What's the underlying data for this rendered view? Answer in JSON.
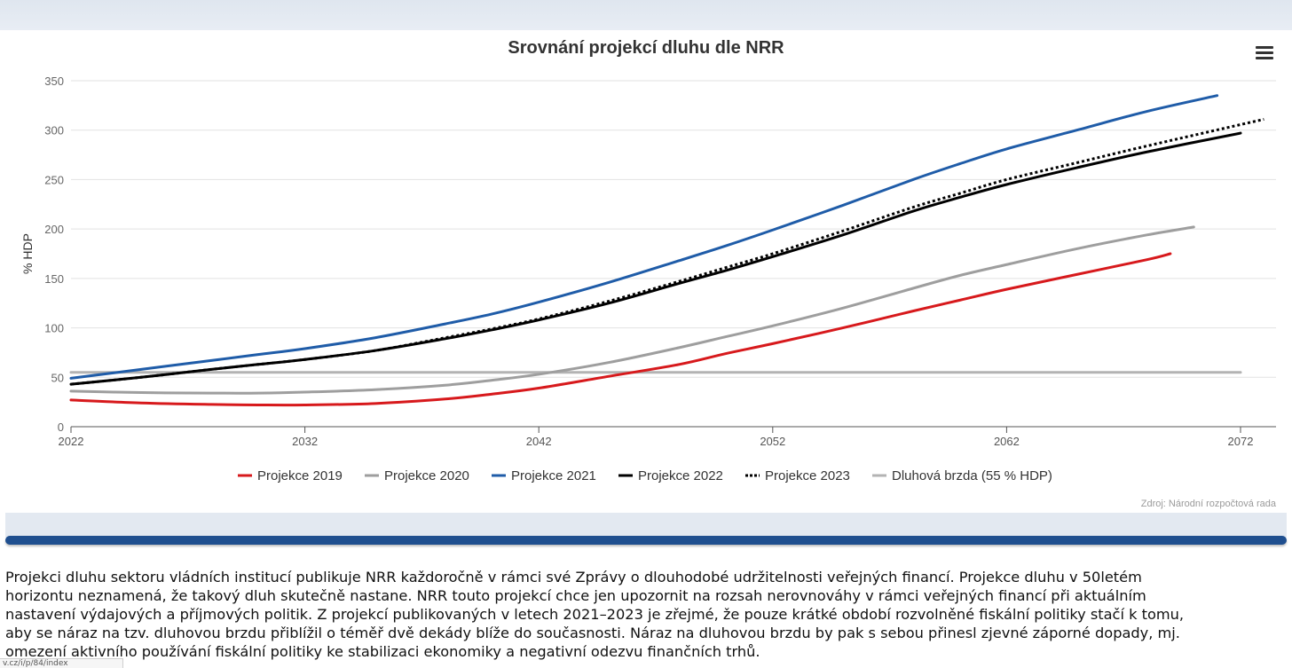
{
  "chart_data": {
    "type": "line",
    "title": "Srovnání projekcí dluhu dle NRR",
    "xlabel": "",
    "ylabel": "% HDP",
    "xlim": [
      2022,
      2073
    ],
    "ylim": [
      0,
      350
    ],
    "x_ticks": [
      2022,
      2032,
      2042,
      2052,
      2062,
      2072
    ],
    "y_ticks": [
      0,
      50,
      100,
      150,
      200,
      250,
      300,
      350
    ],
    "grid": "horizontal",
    "legend_position": "bottom-center",
    "source": "Zdroj: Národní rozpočtová rada",
    "series": [
      {
        "name": "Projekce 2019",
        "color": "#d7191c",
        "dash": "solid",
        "points": [
          [
            2022,
            27
          ],
          [
            2025,
            24
          ],
          [
            2028,
            22.5
          ],
          [
            2030,
            22
          ],
          [
            2032,
            22
          ],
          [
            2035,
            23.5
          ],
          [
            2038,
            28
          ],
          [
            2040,
            33
          ],
          [
            2042,
            39
          ],
          [
            2045,
            51
          ],
          [
            2048,
            63
          ],
          [
            2050,
            74
          ],
          [
            2052,
            84
          ],
          [
            2055,
            100
          ],
          [
            2058,
            117
          ],
          [
            2060,
            128
          ],
          [
            2062,
            139
          ],
          [
            2065,
            154
          ],
          [
            2068,
            169
          ],
          [
            2069,
            175
          ]
        ]
      },
      {
        "name": "Projekce 2020",
        "color": "#9e9e9e",
        "dash": "solid",
        "points": [
          [
            2022,
            36
          ],
          [
            2025,
            34.5
          ],
          [
            2028,
            34
          ],
          [
            2030,
            34
          ],
          [
            2032,
            35
          ],
          [
            2035,
            37.5
          ],
          [
            2038,
            42
          ],
          [
            2040,
            47
          ],
          [
            2042,
            53
          ],
          [
            2045,
            65
          ],
          [
            2048,
            80
          ],
          [
            2050,
            91
          ],
          [
            2052,
            102
          ],
          [
            2055,
            120
          ],
          [
            2058,
            140
          ],
          [
            2060,
            153
          ],
          [
            2062,
            164
          ],
          [
            2065,
            180
          ],
          [
            2068,
            194
          ],
          [
            2070,
            202
          ]
        ]
      },
      {
        "name": "Projekce 2021",
        "color": "#1f5ca8",
        "dash": "solid",
        "points": [
          [
            2022,
            49
          ],
          [
            2025,
            58
          ],
          [
            2028,
            67
          ],
          [
            2030,
            73
          ],
          [
            2032,
            79
          ],
          [
            2035,
            90
          ],
          [
            2038,
            104
          ],
          [
            2040,
            114
          ],
          [
            2042,
            126
          ],
          [
            2045,
            146
          ],
          [
            2048,
            168
          ],
          [
            2050,
            183
          ],
          [
            2052,
            199
          ],
          [
            2055,
            224
          ],
          [
            2058,
            250
          ],
          [
            2060,
            266
          ],
          [
            2062,
            281
          ],
          [
            2065,
            300
          ],
          [
            2068,
            319
          ],
          [
            2071,
            335
          ]
        ]
      },
      {
        "name": "Projekce 2022",
        "color": "#000000",
        "dash": "solid",
        "points": [
          [
            2022,
            43
          ],
          [
            2025,
            50
          ],
          [
            2028,
            58
          ],
          [
            2030,
            63
          ],
          [
            2032,
            68
          ],
          [
            2035,
            77
          ],
          [
            2038,
            89
          ],
          [
            2040,
            98
          ],
          [
            2042,
            108
          ],
          [
            2045,
            125
          ],
          [
            2048,
            145
          ],
          [
            2050,
            158
          ],
          [
            2052,
            172
          ],
          [
            2055,
            194
          ],
          [
            2058,
            218
          ],
          [
            2060,
            232
          ],
          [
            2062,
            245
          ],
          [
            2065,
            262
          ],
          [
            2068,
            278
          ],
          [
            2072,
            297
          ]
        ]
      },
      {
        "name": "Projekce 2023",
        "color": "#000000",
        "dash": "dotted",
        "points": [
          [
            2022,
            43
          ],
          [
            2025,
            50
          ],
          [
            2028,
            58
          ],
          [
            2030,
            63
          ],
          [
            2032,
            68
          ],
          [
            2035,
            77
          ],
          [
            2038,
            90
          ],
          [
            2040,
            99
          ],
          [
            2042,
            109
          ],
          [
            2045,
            127
          ],
          [
            2048,
            147
          ],
          [
            2050,
            161
          ],
          [
            2052,
            175
          ],
          [
            2055,
            198
          ],
          [
            2058,
            222
          ],
          [
            2060,
            236
          ],
          [
            2062,
            250
          ],
          [
            2065,
            267
          ],
          [
            2068,
            284
          ],
          [
            2073,
            311
          ]
        ]
      },
      {
        "name": "Dluhová brzda (55 % HDP)",
        "color": "#b3b3b3",
        "dash": "solid",
        "points": [
          [
            2022,
            55
          ],
          [
            2072,
            55
          ]
        ]
      }
    ]
  },
  "article": {
    "lines": [
      "Projekci dluhu sektoru vládních institucí publikuje NRR každoročně v rámci své Zprávy o dlouhodobé udržitelnosti veřejných financí. Projekce dluhu v 50letém",
      "horizontu neznamená, že takový dluh skutečně nastane. NRR touto projekcí chce jen upozornit na rozsah nerovnováhy v rámci veřejných financí při aktuálním",
      "nastavení výdajových a příjmových politik. Z projekcí publikovaných v letech 2021–2023 je zřejmé, že pouze krátké období rozvolněné fiskální politiky stačí k tomu,",
      "aby se náraz na tzv. dluhovou brzdu přiblížil o téměř dvě dekády blíže do současnosti. Náraz na dluhovou brzdu by pak s sebou přinesl zjevné záporné dopady, mj.",
      "omezení aktivního používání fiskální politiky ke stabilizaci ekonomiky a negativní odezvu finančních trhů."
    ]
  },
  "footer": {
    "status_text": "v.cz/i/p/84/index"
  }
}
